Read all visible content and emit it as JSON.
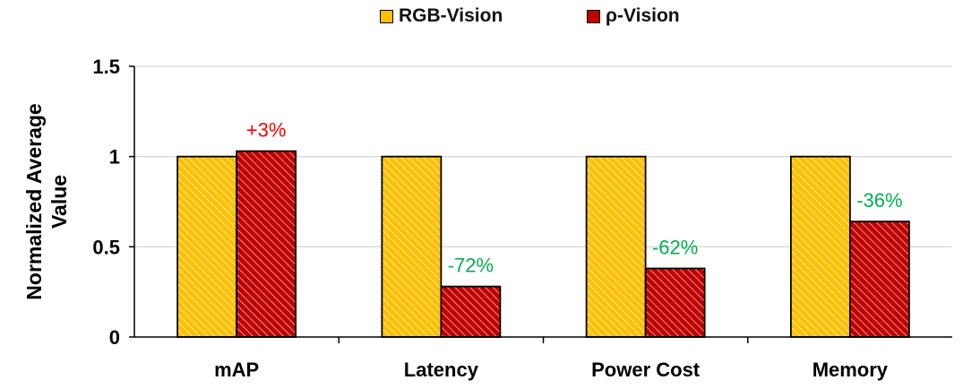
{
  "chart_data": {
    "type": "bar",
    "title": "",
    "xlabel": "",
    "ylabel": "Normalized Average Value",
    "categories": [
      "mAP",
      "Latency",
      "Power Cost",
      "Memory"
    ],
    "series": [
      {
        "name": "RGB-Vision",
        "values": [
          1,
          1,
          1,
          1
        ],
        "color": "#FFC000",
        "pattern": "hatch-light"
      },
      {
        "name": "ρ-Vision",
        "values": [
          1.03,
          0.28,
          0.38,
          0.64
        ],
        "color": "#C00000",
        "pattern": "hatch-light"
      }
    ],
    "ylim": [
      0,
      1.5
    ],
    "yticks": [
      "0",
      "0.5",
      "1",
      "1.5"
    ],
    "ytick_values": [
      0,
      0.5,
      1,
      1.5
    ],
    "grid": true,
    "legend": "top-center",
    "annotations": [
      {
        "category": "mAP",
        "text": "+3%",
        "color": "#FF0000"
      },
      {
        "category": "Latency",
        "text": "-72%",
        "color": "#00B050"
      },
      {
        "category": "Power Cost",
        "text": "-62%",
        "color": "#00B050"
      },
      {
        "category": "Memory",
        "text": "-36%",
        "color": "#00B050"
      }
    ]
  },
  "legend": {
    "items": [
      {
        "label": "RGB-Vision"
      },
      {
        "label": "ρ-Vision"
      }
    ]
  },
  "axes": {
    "ylabel_line1": "Normalized Average",
    "ylabel_line2": "Value"
  }
}
